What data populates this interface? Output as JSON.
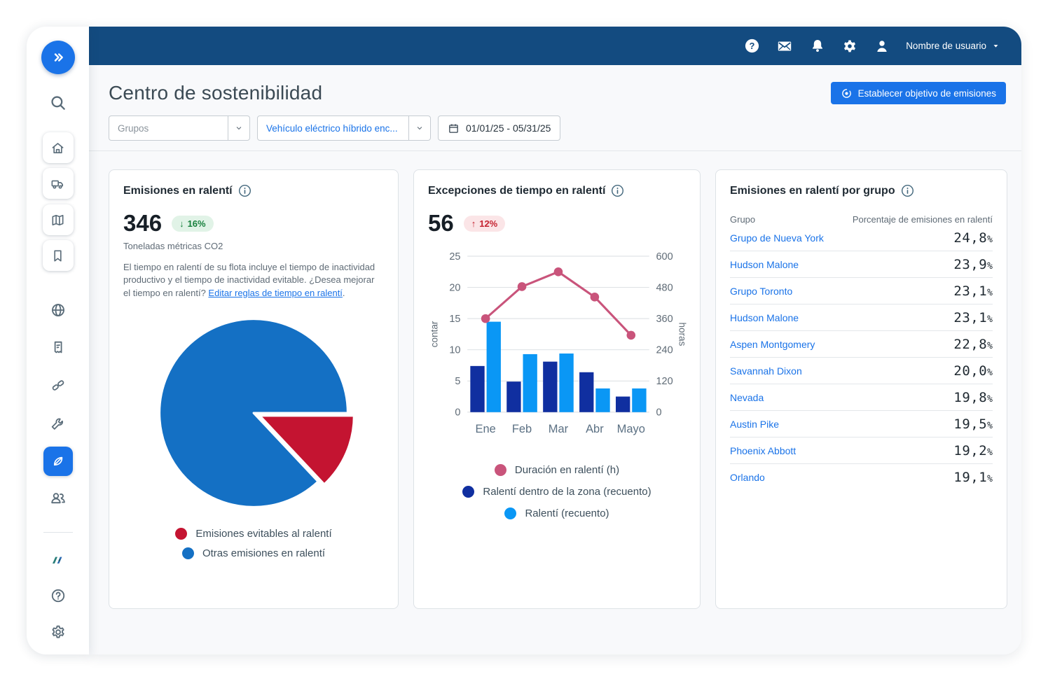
{
  "app": {
    "user_menu_label": "Nombre de usuario"
  },
  "page": {
    "title": "Centro de sostenibilidad",
    "set_emissions_target_button": "Establecer objetivo de emisiones"
  },
  "filters": {
    "groups_placeholder": "Grupos",
    "vehicle_type_value": "Vehículo eléctrico híbrido enc...",
    "date_range_value": "01/01/25 - 05/31/25"
  },
  "cards": {
    "idle_emissions": {
      "title": "Emisiones en ralentí",
      "value": "346",
      "delta_arrow": "↓",
      "delta": "16%",
      "unit": "Toneladas métricas CO2",
      "description": "El tiempo en ralentí de su flota incluye el tiempo de inactividad productivo y el tiempo de inactividad evitable. ¿Desea mejorar el tiempo en ralentí?",
      "link_text": "Editar reglas de tiempo en ralentí",
      "link_suffix": "."
    },
    "idle_exceptions": {
      "title": "Excepciones de tiempo en ralentí",
      "value": "56",
      "delta_arrow": "↑",
      "delta": "12%"
    },
    "idle_by_group": {
      "title": "Emisiones en ralentí por grupo",
      "columns": [
        "Grupo",
        "Porcentaje de emisiones en ralentí"
      ],
      "rows": [
        {
          "group": "Grupo de Nueva York",
          "percent": "24,8%"
        },
        {
          "group": "Hudson Malone",
          "percent": "23,9%"
        },
        {
          "group": "Grupo Toronto",
          "percent": "23,1%"
        },
        {
          "group": "Hudson Malone",
          "percent": "23,1%"
        },
        {
          "group": "Aspen Montgomery",
          "percent": "22,8%"
        },
        {
          "group": "Savannah Dixon",
          "percent": "20,0%"
        },
        {
          "group": "Nevada",
          "percent": "19,8%"
        },
        {
          "group": "Austin Pike",
          "percent": "19,5%"
        },
        {
          "group": "Phoenix Abbott",
          "percent": "19,2%"
        },
        {
          "group": "Orlando",
          "percent": "19,1%"
        }
      ]
    }
  },
  "chart_data": [
    {
      "type": "pie",
      "title": "Emisiones en ralentí",
      "units": "Toneladas métricas CO2",
      "total_metric_tons": 346,
      "slices": [
        {
          "label": "Emisiones evitables al ralentí",
          "value": 13,
          "color": "#c41431",
          "exploded": true
        },
        {
          "label": "Otras emisiones en ralentí",
          "value": 87,
          "color": "#1470c4",
          "exploded": false
        }
      ],
      "legend_position": "bottom"
    },
    {
      "type": "bar+line",
      "title": "Excepciones de tiempo en ralentí",
      "categories": [
        "Ene",
        "Feb",
        "Mar",
        "Abr",
        "Mayo"
      ],
      "series": [
        {
          "name": "Duración en ralentí (h)",
          "chart": "line",
          "axis": "right",
          "color": "#c9547b",
          "values": [
            360,
            483,
            540,
            443,
            296
          ]
        },
        {
          "name": "Ralentí dentro de la zona (recuento)",
          "chart": "bar",
          "axis": "left",
          "color": "#102fa0",
          "values": [
            7.4,
            4.9,
            8.1,
            6.4,
            2.5
          ]
        },
        {
          "name": "Ralentí (recuento)",
          "chart": "bar",
          "axis": "left",
          "color": "#0a97f5",
          "values": [
            14.5,
            9.3,
            9.4,
            3.8,
            3.8
          ]
        }
      ],
      "left_axis": {
        "label": "contar",
        "ticks": [
          0,
          5,
          10,
          15,
          20,
          25
        ],
        "range": [
          0,
          25
        ]
      },
      "right_axis": {
        "label": "horas",
        "ticks": [
          0,
          120,
          240,
          360,
          480,
          600
        ],
        "range": [
          0,
          600
        ]
      },
      "grid": true,
      "legend_position": "bottom"
    }
  ],
  "colors": {
    "accent_blue": "#1a73e8",
    "header_navy": "#134b80",
    "positive_badge_bg": "#e1f3e7",
    "positive_badge_text": "#17803d",
    "negative_badge_bg": "#fbe5e7",
    "negative_badge_text": "#c52230"
  }
}
